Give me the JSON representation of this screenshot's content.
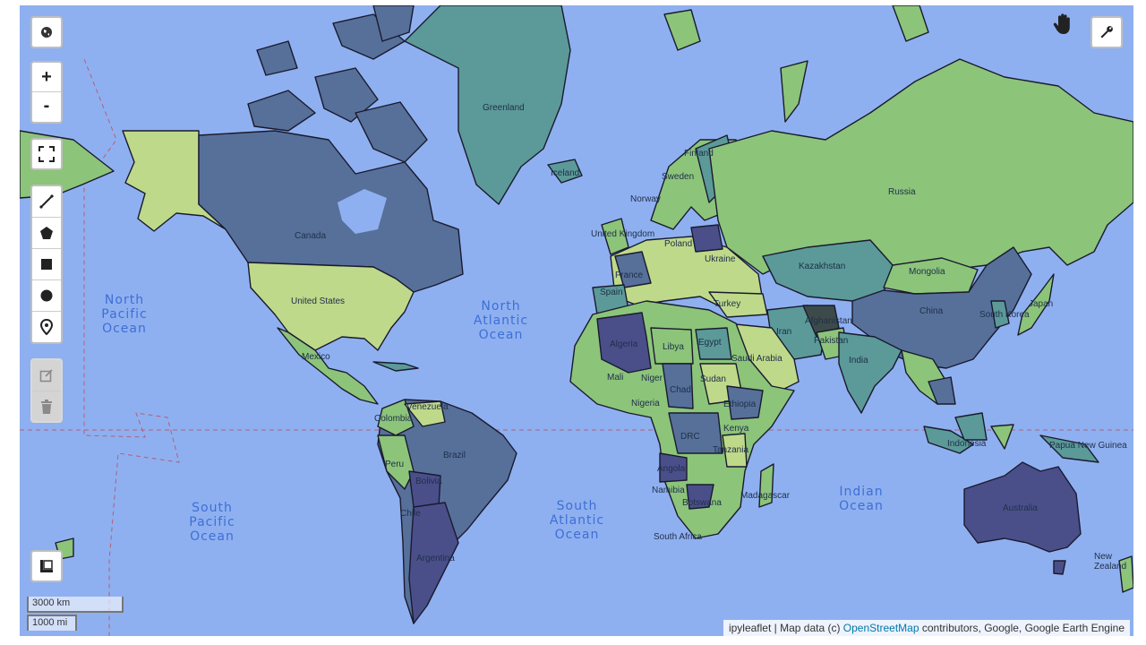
{
  "map": {
    "oceans": {
      "north_pacific": [
        "North",
        "Pacific",
        "Ocean"
      ],
      "north_atlantic": [
        "North",
        "Atlantic",
        "Ocean"
      ],
      "south_pacific": [
        "South",
        "Pacific",
        "Ocean"
      ],
      "south_atlantic": [
        "South",
        "Atlantic",
        "Ocean"
      ],
      "indian": [
        "Indian",
        "Ocean"
      ]
    },
    "countries": {
      "greenland": "Greenland",
      "canada": "Canada",
      "united_states": "United States",
      "mexico": "Mexico",
      "colombia": "Colombia",
      "venezuela": "Venezuela",
      "brazil": "Brazil",
      "peru": "Peru",
      "bolivia": "Bolivia",
      "chile": "Chile",
      "argentina": "Argentina",
      "iceland": "Iceland",
      "norway": "Norway",
      "sweden": "Sweden",
      "finland": "Finland",
      "united_kingdom": "United Kingdom",
      "france": "France",
      "spain": "Spain",
      "poland": "Poland",
      "ukraine": "Ukraine",
      "turkey": "Turkey",
      "russia": "Russia",
      "kazakhstan": "Kazakhstan",
      "mongolia": "Mongolia",
      "china": "China",
      "south_korea": "South Korea",
      "japan": "Japan",
      "iran": "Iran",
      "afghanistan": "Afghanistan",
      "pakistan": "Pakistan",
      "india": "India",
      "saudi_arabia": "Saudi Arabia",
      "egypt": "Egypt",
      "libya": "Libya",
      "algeria": "Algeria",
      "mali": "Mali",
      "niger": "Niger",
      "chad": "Chad",
      "sudan": "Sudan",
      "nigeria": "Nigeria",
      "ethiopia": "Ethiopia",
      "kenya": "Kenya",
      "drc": "DRC",
      "tanzania": "Tanzania",
      "angola": "Angola",
      "namibia": "Namibia",
      "botswana": "Botswana",
      "south_africa": "South Africa",
      "madagascar": "Madagascar",
      "indonesia": "Indonesia",
      "papua_new_guinea": "Papua New Guinea",
      "australia": "Australia",
      "new_zealand": "New Zealand"
    }
  },
  "controls": {
    "zoom_in": "+",
    "zoom_out": "-"
  },
  "scale": {
    "km": "3000 km",
    "mi": "1000 mi"
  },
  "attribution": {
    "prefix": "ipyleaflet | Map data (c) ",
    "link": "OpenStreetMap",
    "suffix": " contributors, Google, Google Earth Engine"
  },
  "colors": {
    "ocean": "#8fb0f0",
    "yellow_green": "#bfd98a",
    "green": "#8cc47a",
    "teal": "#5b9a98",
    "slate": "#56709a",
    "dark_indigo": "#4a4f8a",
    "dark": "#3d4a4a"
  }
}
